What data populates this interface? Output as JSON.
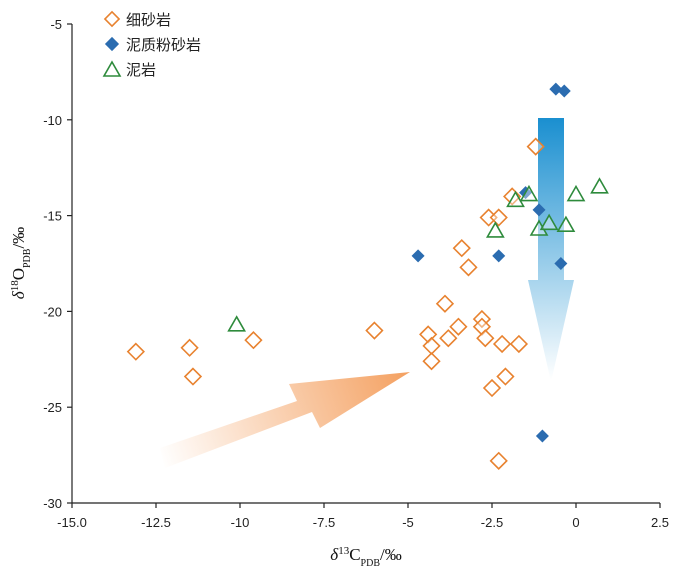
{
  "chart_data": {
    "type": "scatter",
    "xlabel": "δ13CPDB/‰",
    "ylabel": "δ18OPDB/‰",
    "xlabel_parts": {
      "delta": "δ",
      "sup": "13",
      "base": "C",
      "sub": "PDB",
      "unit": "/‰"
    },
    "ylabel_parts": {
      "delta": "δ",
      "sup": "18",
      "base": "O",
      "sub": "PDB",
      "unit": "/‰"
    },
    "xlim": [
      -15,
      2.5
    ],
    "ylim": [
      -30,
      -5
    ],
    "xticks": [
      -15,
      -12.5,
      -10,
      -7.5,
      -5,
      -2.5,
      0,
      2.5
    ],
    "yticks": [
      -5,
      -10,
      -15,
      -20,
      -25,
      -30
    ],
    "xtick_labels": [
      "-15.0",
      "-12.5",
      "-10",
      "-7.5",
      "-5",
      "-2.5",
      "0",
      "2.5"
    ],
    "ytick_labels": [
      "-5",
      "-10",
      "-15",
      "-20",
      "-25",
      "-30"
    ],
    "legend_position": "top-left",
    "series": [
      {
        "name": "细砂岩",
        "marker": "diamond-open",
        "color": "#e8822f",
        "points": [
          [
            -13.1,
            -22.1
          ],
          [
            -11.5,
            -21.9
          ],
          [
            -11.4,
            -23.4
          ],
          [
            -9.6,
            -21.5
          ],
          [
            -6.0,
            -21.0
          ],
          [
            -4.4,
            -21.2
          ],
          [
            -4.3,
            -21.8
          ],
          [
            -4.3,
            -22.6
          ],
          [
            -3.9,
            -19.6
          ],
          [
            -3.8,
            -21.4
          ],
          [
            -3.5,
            -20.8
          ],
          [
            -3.4,
            -16.7
          ],
          [
            -3.2,
            -17.7
          ],
          [
            -2.8,
            -20.4
          ],
          [
            -2.8,
            -20.8
          ],
          [
            -2.7,
            -21.4
          ],
          [
            -2.6,
            -15.1
          ],
          [
            -2.5,
            -24.0
          ],
          [
            -2.3,
            -15.1
          ],
          [
            -2.3,
            -27.8
          ],
          [
            -2.2,
            -21.7
          ],
          [
            -2.1,
            -23.4
          ],
          [
            -1.9,
            -14.0
          ],
          [
            -1.7,
            -21.7
          ],
          [
            -1.2,
            -11.4
          ]
        ]
      },
      {
        "name": "泥质粉砂岩",
        "marker": "diamond-filled",
        "color": "#2b6cb0",
        "points": [
          [
            -4.7,
            -17.1
          ],
          [
            -2.3,
            -17.1
          ],
          [
            -1.5,
            -13.8
          ],
          [
            -1.1,
            -14.7
          ],
          [
            -1.0,
            -26.5
          ],
          [
            -0.6,
            -8.4
          ],
          [
            -0.35,
            -8.5
          ],
          [
            -0.45,
            -17.5
          ]
        ]
      },
      {
        "name": "泥岩",
        "marker": "triangle-open",
        "color": "#2e8b3c",
        "points": [
          [
            -10.1,
            -20.7
          ],
          [
            -2.4,
            -15.8
          ],
          [
            -1.8,
            -14.2
          ],
          [
            -1.4,
            -13.9
          ],
          [
            -1.1,
            -15.7
          ],
          [
            -0.8,
            -15.4
          ],
          [
            -0.3,
            -15.5
          ],
          [
            0.0,
            -13.9
          ],
          [
            0.7,
            -13.5
          ]
        ]
      }
    ]
  },
  "colors": {
    "arrow_orange": "#f4a060",
    "arrow_blue": "#1a8fd0",
    "axis": "#222222"
  }
}
